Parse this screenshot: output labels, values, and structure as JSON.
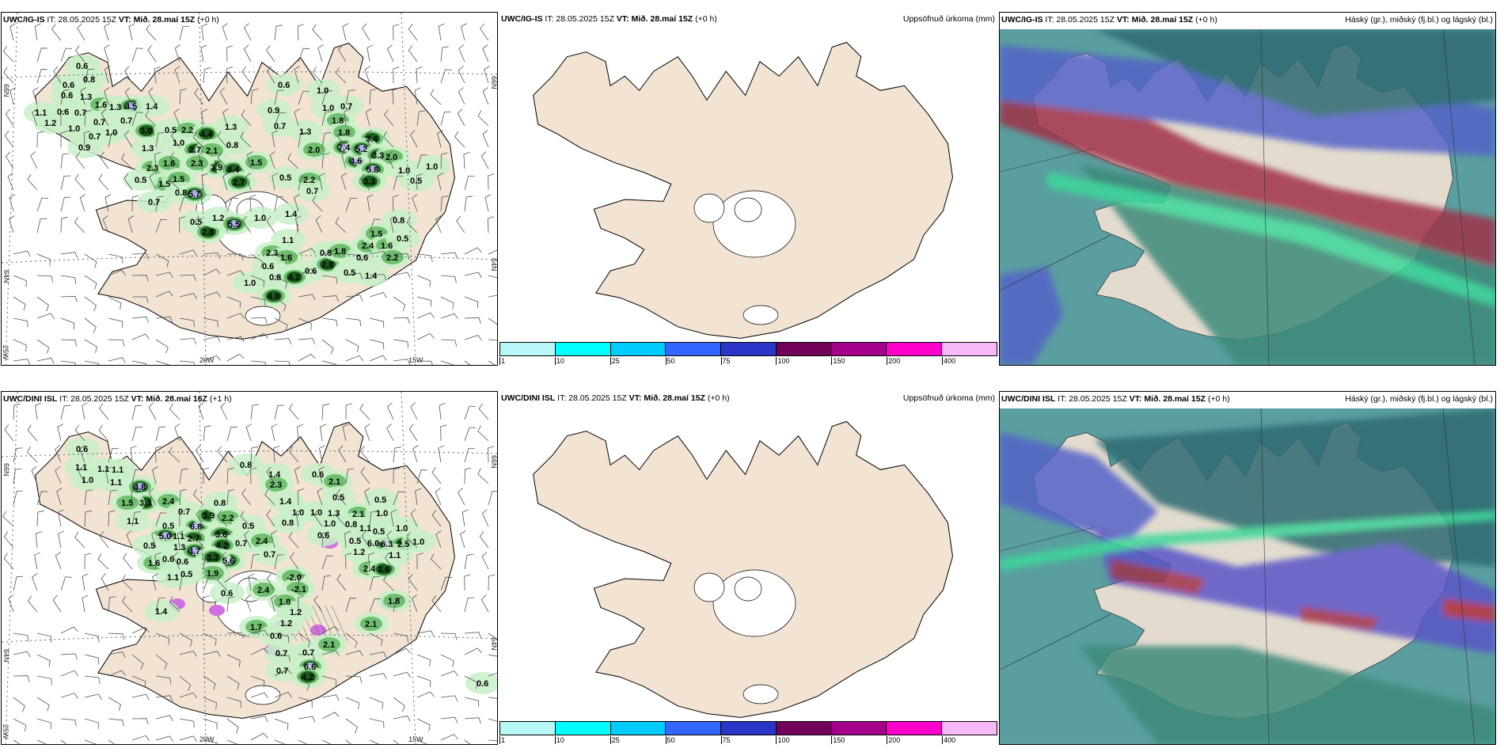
{
  "rows": [
    {
      "wind_panel": {
        "model": "UWC/IG-IS",
        "it": "IT: 28.05.2025 15Z",
        "vt": "VT: Mið. 28.maí 15Z",
        "offset": "(+0 h)"
      },
      "precip_panel": {
        "model": "UWC/IG-IS",
        "it": "IT: 28.05.2025 15Z",
        "vt": "VT: Mið. 28.maí 15Z",
        "offset": "(+0 h)",
        "right_label": "Uppsöfnuð úrkoma (mm)"
      },
      "cloud_panel": {
        "model": "UWC/IG-IS",
        "it": "IT: 28.05.2025 15Z",
        "vt": "VT: Mið. 28.maí 15Z",
        "offset": "(+0 h)",
        "right_label": "Háský (gr.), miðský (fj.bl.) og lágský (bl.)"
      }
    },
    {
      "wind_panel": {
        "model": "UWC/DINI ISL",
        "it": "IT: 28.05.2025 15Z",
        "vt": "VT: Mið. 28.maí 16Z",
        "offset": "(+1 h)"
      },
      "precip_panel": {
        "model": "UWC/DINI ISL",
        "it": "IT: 28.05.2025 15Z",
        "vt": "VT: Mið. 28.maí 15Z",
        "offset": "(+0 h)",
        "right_label": "Uppsöfnuð úrkoma (mm)"
      },
      "cloud_panel": {
        "model": "UWC/DINI ISL",
        "it": "IT: 28.05.2025 15Z",
        "vt": "VT: Mið. 28.maí 15Z",
        "offset": "(+0 h)",
        "right_label": "Háský (gr.), miðský (fj.bl.) og lágský (bl.)"
      }
    }
  ],
  "axes": {
    "lon_20": "20W",
    "lon_15": "15W",
    "lon_25": "25W",
    "lat_66": "66N",
    "lat_64": "64N"
  },
  "colorbar": {
    "ticks": [
      "1",
      "10",
      "25",
      "50",
      "75",
      "100",
      "150",
      "200",
      "400"
    ],
    "colors": [
      "#b8f8f8",
      "#00ffff",
      "#00ccff",
      "#3366ff",
      "#2b35c8",
      "#700058",
      "#a4008c",
      "#ff00cc",
      "#f7b8f7"
    ]
  },
  "precip_labels_top": [
    "0.6",
    "0.8",
    "0.6",
    "1.3",
    "0.6",
    "0.7",
    "0.6",
    "1.6",
    "1.0",
    "1.3",
    "4.5",
    "1.4",
    "1.2",
    "1.1",
    "0.7",
    "0.7",
    "0.7",
    "1.0",
    "0.9",
    "3.0",
    "1.3",
    "0.5",
    "2.2",
    "4.4",
    "1.3",
    "0.8",
    "1.0",
    "2.7",
    "2.1",
    "3.9",
    "2.3",
    "1.6",
    "2.3",
    "1.5",
    "1.5",
    "0.5",
    "0.8",
    "0.7",
    "5.7",
    "4.4",
    "2.7",
    "0.6",
    "1.0",
    "1.0",
    "0.7",
    "1.8",
    "1.8",
    "0.9",
    "0.7",
    "1.3",
    "2.0",
    "7.4",
    "3.4",
    "4.6",
    "5.2",
    "3.3",
    "2.0",
    "1.5",
    "5.8",
    "1.0",
    "0.5",
    "1.0",
    "0.5",
    "2.2",
    "0.7",
    "3.3",
    "1.4",
    "1.0",
    "0.8",
    "0.5",
    "2.8",
    "1.2",
    "5.5",
    "1.1",
    "2.3",
    "1.6",
    "0.6",
    "0.8",
    "0.6",
    "4.2",
    "1.0",
    "4.0",
    "0.8",
    "2.8",
    "1.8",
    "0.5",
    "1.4",
    "0.6",
    "2.4",
    "1.5",
    "1.6",
    "2.2",
    "0.5"
  ],
  "precip_labels_bottom": [
    "0.6",
    "1.1",
    "1.0",
    "1.1",
    "1.1",
    "1.1",
    "4.8",
    "3.3",
    "2.4",
    "1.5",
    "1.1",
    "0.7",
    "6.8",
    "3.9",
    "0.8",
    "2.2",
    "3.6",
    "0.5",
    "1.1",
    "0.5",
    "0.7",
    "5.0",
    "2.7",
    "1.3",
    "4.2",
    "5.6",
    "2.4",
    "0.5",
    "1.6",
    "0.6",
    "0.6",
    "4.7",
    "3.3",
    "1.9",
    "1.1",
    "0.5",
    "1.4",
    "0.6",
    "0.8",
    "0.6",
    "2.1",
    "1.4",
    "2.3",
    "1.4",
    "0.5",
    "1.0",
    "0.8",
    "1.0",
    "1.3",
    "1.0",
    "2.1",
    "1.0",
    "1.1",
    "0.5",
    "1.0",
    "6.0",
    "6.3",
    "0.5",
    "0.6",
    "0.8",
    "0.5",
    "0.7",
    "1.2",
    "2.5",
    "1.0",
    "2.4",
    "3.6",
    "1.1",
    "-2.0",
    "-2.1",
    "2.4",
    "1.8",
    "1.2",
    "1.8",
    "1.2",
    "1.7",
    "0.6",
    "0.7",
    "0.7",
    "0.7",
    "6.6",
    "4.2",
    "2.1",
    "2.1",
    "0.6"
  ],
  "colors": {
    "land": "#f2e3d3",
    "green_light": "#c8f0c8",
    "green_mid": "#6fbf6f",
    "green_dark": "#1a5c1a",
    "lavender": "#b0b4e8",
    "purple": "#d070e0"
  }
}
